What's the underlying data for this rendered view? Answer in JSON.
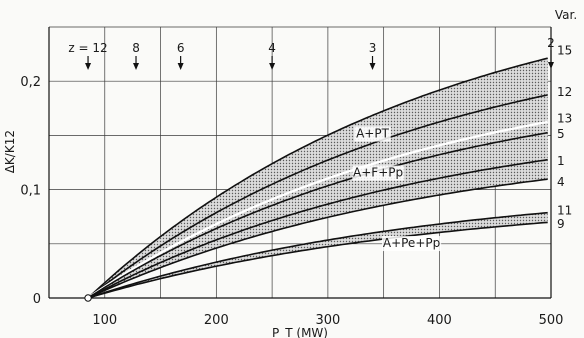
{
  "chart_data": {
    "type": "area",
    "xlabel": "P_T (MW)",
    "ylabel": "ΔK/K12",
    "xlim": [
      50,
      500
    ],
    "ylim": [
      0,
      0.25
    ],
    "x_ticks": [
      100,
      200,
      300,
      400,
      500
    ],
    "y_ticks": [
      {
        "value": 0,
        "label": "0"
      },
      {
        "value": 0.1,
        "label": "0,1"
      },
      {
        "value": 0.2,
        "label": "0,2"
      }
    ],
    "grid": true,
    "x_origin": 85,
    "corner_label": "Var.",
    "markers": [
      {
        "label": "z = 12",
        "x": 85
      },
      {
        "label": "8",
        "x": 128
      },
      {
        "label": "6",
        "x": 168
      },
      {
        "label": "4",
        "x": 250
      },
      {
        "label": "3",
        "x": 340
      },
      {
        "label": "2",
        "x": 500
      }
    ],
    "series": [
      {
        "name": "15",
        "end": 0.222
      },
      {
        "name": "12",
        "end": 0.188
      },
      {
        "name": "13",
        "end": 0.163
      },
      {
        "name": "5",
        "end": 0.153
      },
      {
        "name": "1",
        "end": 0.128
      },
      {
        "name": "4",
        "end": 0.11
      },
      {
        "name": "11",
        "end": 0.079
      },
      {
        "name": "9",
        "end": 0.07
      }
    ],
    "bands": [
      {
        "label": "A+PT",
        "upper": "15",
        "lower": "5",
        "label_x": 340,
        "label_y": 0.148
      },
      {
        "label": "A+F+Pp",
        "upper": "5",
        "lower": "4",
        "label_x": 345,
        "label_y": 0.112
      },
      {
        "label": "A+Pe+Pp",
        "upper": "11",
        "lower": "9",
        "label_x": 375,
        "label_y": 0.047
      }
    ]
  }
}
